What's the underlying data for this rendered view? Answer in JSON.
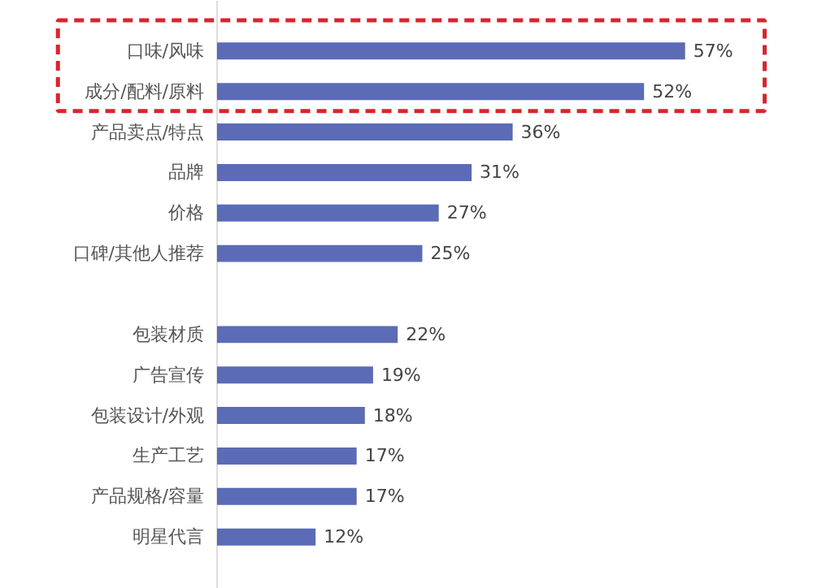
{
  "chart_data": {
    "type": "bar",
    "orientation": "horizontal",
    "categories": [
      "口味/风味",
      "成分/配料/原料",
      "产品卖点/特点",
      "品牌",
      "价格",
      "口碑/其他人推荐",
      null,
      "包装材质",
      "广告宣传",
      "包装设计/外观",
      "生产工艺",
      "产品规格/容量",
      "明星代言"
    ],
    "values": [
      57,
      52,
      36,
      31,
      27,
      25,
      null,
      22,
      19,
      18,
      17,
      17,
      12
    ],
    "value_labels": [
      "57%",
      "52%",
      "36%",
      "31%",
      "27%",
      "25%",
      null,
      "22%",
      "19%",
      "18%",
      "17%",
      "17%",
      "12%"
    ],
    "color": "#5b6bb6"
  }
}
